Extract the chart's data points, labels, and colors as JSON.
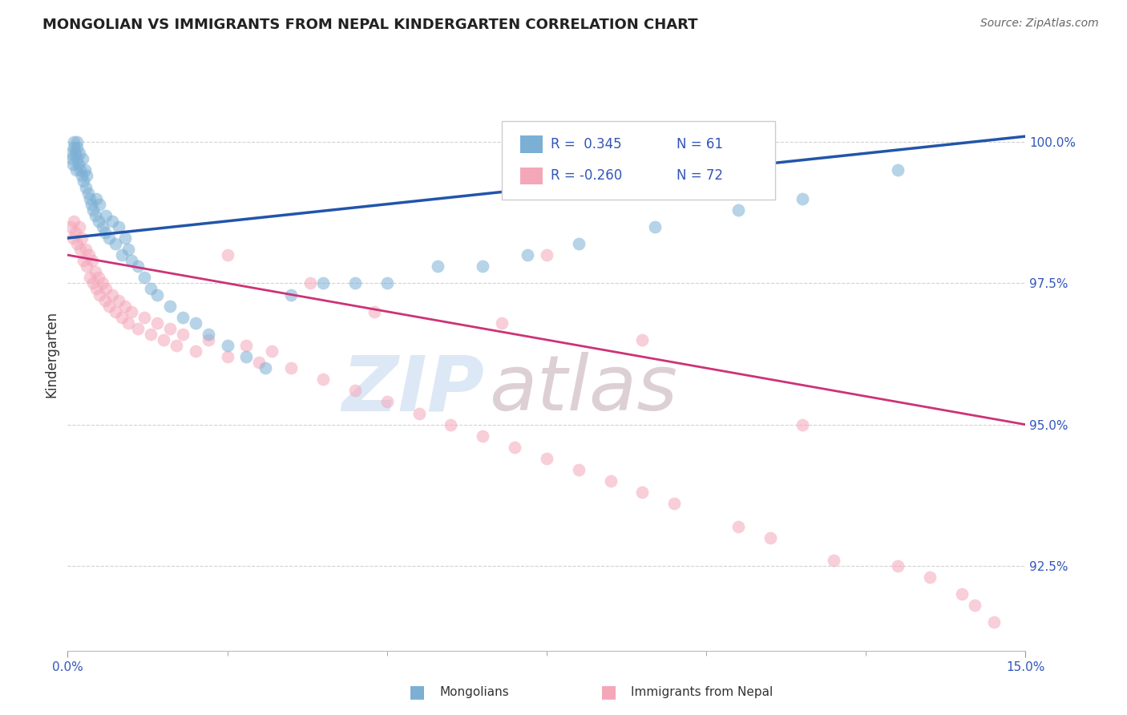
{
  "title": "MONGOLIAN VS IMMIGRANTS FROM NEPAL KINDERGARTEN CORRELATION CHART",
  "source": "Source: ZipAtlas.com",
  "ylabel": "Kindergarten",
  "xlim": [
    0.0,
    15.0
  ],
  "ylim": [
    91.0,
    101.5
  ],
  "yticks": [
    92.5,
    95.0,
    97.5,
    100.0
  ],
  "ytick_labels": [
    "92.5%",
    "95.0%",
    "97.5%",
    "100.0%"
  ],
  "mongolian_color": "#7bafd4",
  "nepal_color": "#f4a7b9",
  "trend_blue": "#2255aa",
  "trend_pink": "#cc3377",
  "background_color": "#ffffff",
  "grid_color": "#cccccc",
  "mongolian_x": [
    0.05,
    0.07,
    0.08,
    0.1,
    0.1,
    0.12,
    0.13,
    0.14,
    0.15,
    0.15,
    0.17,
    0.18,
    0.2,
    0.22,
    0.23,
    0.25,
    0.27,
    0.28,
    0.3,
    0.32,
    0.35,
    0.37,
    0.4,
    0.43,
    0.45,
    0.48,
    0.5,
    0.55,
    0.58,
    0.6,
    0.65,
    0.7,
    0.75,
    0.8,
    0.85,
    0.9,
    0.95,
    1.0,
    1.1,
    1.2,
    1.3,
    1.4,
    1.6,
    1.8,
    2.0,
    2.2,
    2.5,
    2.8,
    3.1,
    3.5,
    4.0,
    4.5,
    5.0,
    5.8,
    6.5,
    7.2,
    8.0,
    9.2,
    10.5,
    11.5,
    13.0
  ],
  "mongolian_y": [
    99.8,
    99.7,
    99.6,
    99.9,
    100.0,
    99.8,
    99.5,
    99.7,
    99.9,
    100.0,
    99.6,
    99.8,
    99.5,
    99.4,
    99.7,
    99.3,
    99.5,
    99.2,
    99.4,
    99.1,
    99.0,
    98.9,
    98.8,
    98.7,
    99.0,
    98.6,
    98.9,
    98.5,
    98.4,
    98.7,
    98.3,
    98.6,
    98.2,
    98.5,
    98.0,
    98.3,
    98.1,
    97.9,
    97.8,
    97.6,
    97.4,
    97.3,
    97.1,
    96.9,
    96.8,
    96.6,
    96.4,
    96.2,
    96.0,
    97.3,
    97.5,
    97.5,
    97.5,
    97.8,
    97.8,
    98.0,
    98.2,
    98.5,
    98.8,
    99.0,
    99.5
  ],
  "nepal_x": [
    0.05,
    0.08,
    0.1,
    0.12,
    0.15,
    0.18,
    0.2,
    0.22,
    0.25,
    0.28,
    0.3,
    0.33,
    0.35,
    0.38,
    0.4,
    0.43,
    0.45,
    0.48,
    0.5,
    0.55,
    0.58,
    0.6,
    0.65,
    0.7,
    0.75,
    0.8,
    0.85,
    0.9,
    0.95,
    1.0,
    1.1,
    1.2,
    1.3,
    1.4,
    1.5,
    1.6,
    1.7,
    1.8,
    2.0,
    2.2,
    2.5,
    2.8,
    3.0,
    3.2,
    3.5,
    4.0,
    4.5,
    5.0,
    5.5,
    6.0,
    6.5,
    7.0,
    7.5,
    8.0,
    8.5,
    9.0,
    9.5,
    10.5,
    11.0,
    12.0,
    13.0,
    13.5,
    14.0,
    14.2,
    14.5,
    2.5,
    3.8,
    4.8,
    6.8,
    7.5,
    9.0,
    11.5
  ],
  "nepal_y": [
    98.5,
    98.3,
    98.6,
    98.4,
    98.2,
    98.5,
    98.1,
    98.3,
    97.9,
    98.1,
    97.8,
    98.0,
    97.6,
    97.9,
    97.5,
    97.7,
    97.4,
    97.6,
    97.3,
    97.5,
    97.2,
    97.4,
    97.1,
    97.3,
    97.0,
    97.2,
    96.9,
    97.1,
    96.8,
    97.0,
    96.7,
    96.9,
    96.6,
    96.8,
    96.5,
    96.7,
    96.4,
    96.6,
    96.3,
    96.5,
    96.2,
    96.4,
    96.1,
    96.3,
    96.0,
    95.8,
    95.6,
    95.4,
    95.2,
    95.0,
    94.8,
    94.6,
    94.4,
    94.2,
    94.0,
    93.8,
    93.6,
    93.2,
    93.0,
    92.6,
    92.5,
    92.3,
    92.0,
    91.8,
    91.5,
    98.0,
    97.5,
    97.0,
    96.8,
    98.0,
    96.5,
    95.0
  ],
  "watermark_zip_color": "#dce8f5",
  "watermark_atlas_color": "#ddd0d5"
}
